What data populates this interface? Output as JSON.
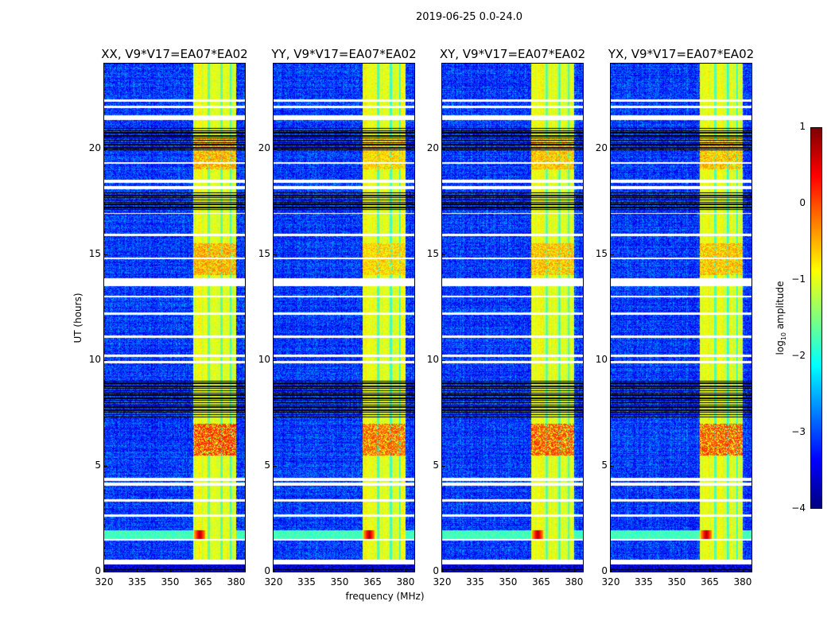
{
  "chart_data": {
    "type": "heatmap",
    "title": "2019-06-25 0.0-24.0",
    "xlabel": "frequency (MHz)",
    "ylabel": "UT (hours)",
    "xlim": [
      320,
      384
    ],
    "ylim": [
      0,
      24
    ],
    "xticks": [
      320,
      335,
      350,
      365,
      380
    ],
    "yticks": [
      0,
      5,
      10,
      15,
      20
    ],
    "colormap": "jet",
    "colorbar": {
      "label_prefix": "log",
      "label_sub": "10",
      "label_suffix": " amplitude",
      "range": [
        -4,
        1
      ],
      "ticks": [
        1,
        0,
        -1,
        -2,
        -3,
        -4
      ]
    },
    "panels": [
      {
        "title": "XX, V9*V17=EA07*EA02",
        "hot_level": 0.1
      },
      {
        "title": "YY, V9*V17=EA07*EA02",
        "hot_level": -0.1
      },
      {
        "title": "XY, V9*V17=EA07*EA02",
        "hot_level": 0.0
      },
      {
        "title": "YX, V9*V17=EA07*EA02",
        "hot_level": 0.0
      }
    ],
    "background_level": -3.1,
    "bright_band_mhz": [
      360.5,
      380
    ],
    "bright_band_level": -1.0,
    "rfi_line": {
      "ut_hours": 1.7,
      "peak_mhz": 363.5,
      "peak_level": 0.8
    },
    "hot_regions": [
      {
        "ut_hours": [
          5.5,
          7.0
        ],
        "level": 0.0
      },
      {
        "ut_hours": [
          14.0,
          15.5
        ],
        "level": -0.5
      },
      {
        "ut_hours": [
          19.0,
          20.5
        ],
        "level": -0.5
      }
    ],
    "flagged_white_hours": [
      [
        0.35,
        0.55
      ],
      [
        1.45,
        1.55
      ],
      [
        2.6,
        2.7
      ],
      [
        3.3,
        3.4
      ],
      [
        4.05,
        4.2
      ],
      [
        4.3,
        4.45
      ],
      [
        9.85,
        9.95
      ],
      [
        10.15,
        10.25
      ],
      [
        11.05,
        11.15
      ],
      [
        12.15,
        12.25
      ],
      [
        12.95,
        13.05
      ],
      [
        13.5,
        13.85
      ],
      [
        14.75,
        14.85
      ],
      [
        15.85,
        15.95
      ],
      [
        16.9,
        16.95
      ],
      [
        18.05,
        18.2
      ],
      [
        18.35,
        18.5
      ],
      [
        19.25,
        19.35
      ],
      [
        21.35,
        21.55
      ],
      [
        21.9,
        22.0
      ],
      [
        22.2,
        22.3
      ]
    ],
    "flagged_black_hours": [
      [
        7.3,
        9.0
      ],
      [
        17.0,
        17.9
      ],
      [
        19.9,
        21.0
      ],
      [
        0.0,
        0.1
      ]
    ]
  }
}
